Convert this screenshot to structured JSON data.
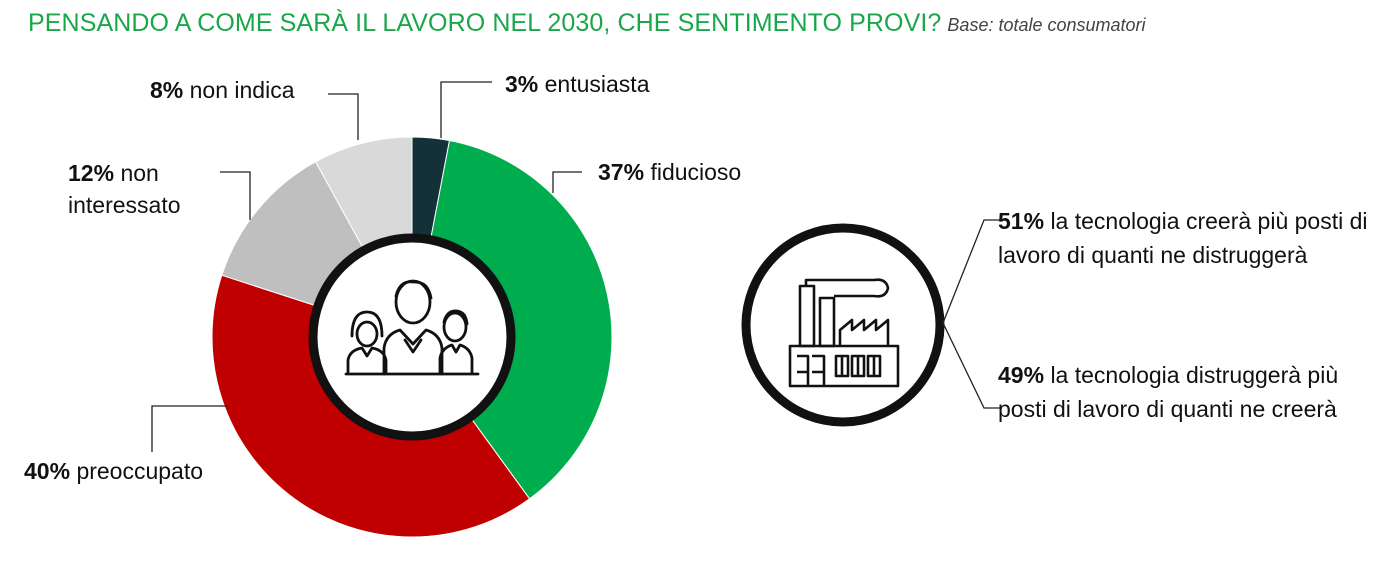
{
  "title": "PENSANDO A COME SARÀ IL LAVORO NEL 2030, CHE SENTIMENTO PROVI?",
  "base_note": "Base: totale consumatori",
  "chart_data": {
    "type": "pie",
    "variant": "donut",
    "title": "PENSANDO A COME SARÀ IL LAVORO NEL 2030, CHE SENTIMENTO PROVI?",
    "subtitle": "Base: totale consumatori",
    "slices": [
      {
        "pct": "3%",
        "label": "entusiasta",
        "value": 3,
        "color": "#14313a"
      },
      {
        "pct": "37%",
        "label": "fiducioso",
        "value": 37,
        "color": "#00ad4e"
      },
      {
        "pct": "40%",
        "label": "preoccupato",
        "value": 40,
        "color": "#c00000"
      },
      {
        "pct": "12%",
        "label": "non interessato",
        "value": 12,
        "color": "#bfbfbf"
      },
      {
        "pct": "8%",
        "label": "non indica",
        "value": 8,
        "color": "#d9d9d9"
      }
    ],
    "center_icon": "people-group-icon"
  },
  "technology": {
    "icon": "factory-icon",
    "statements": [
      {
        "pct": "51%",
        "text": "la tecnologia creerà più posti di lavoro di quanti ne distruggerà"
      },
      {
        "pct": "49%",
        "text": "la tecnologia distruggerà più posti di lavoro di quanti ne creerà"
      }
    ]
  }
}
